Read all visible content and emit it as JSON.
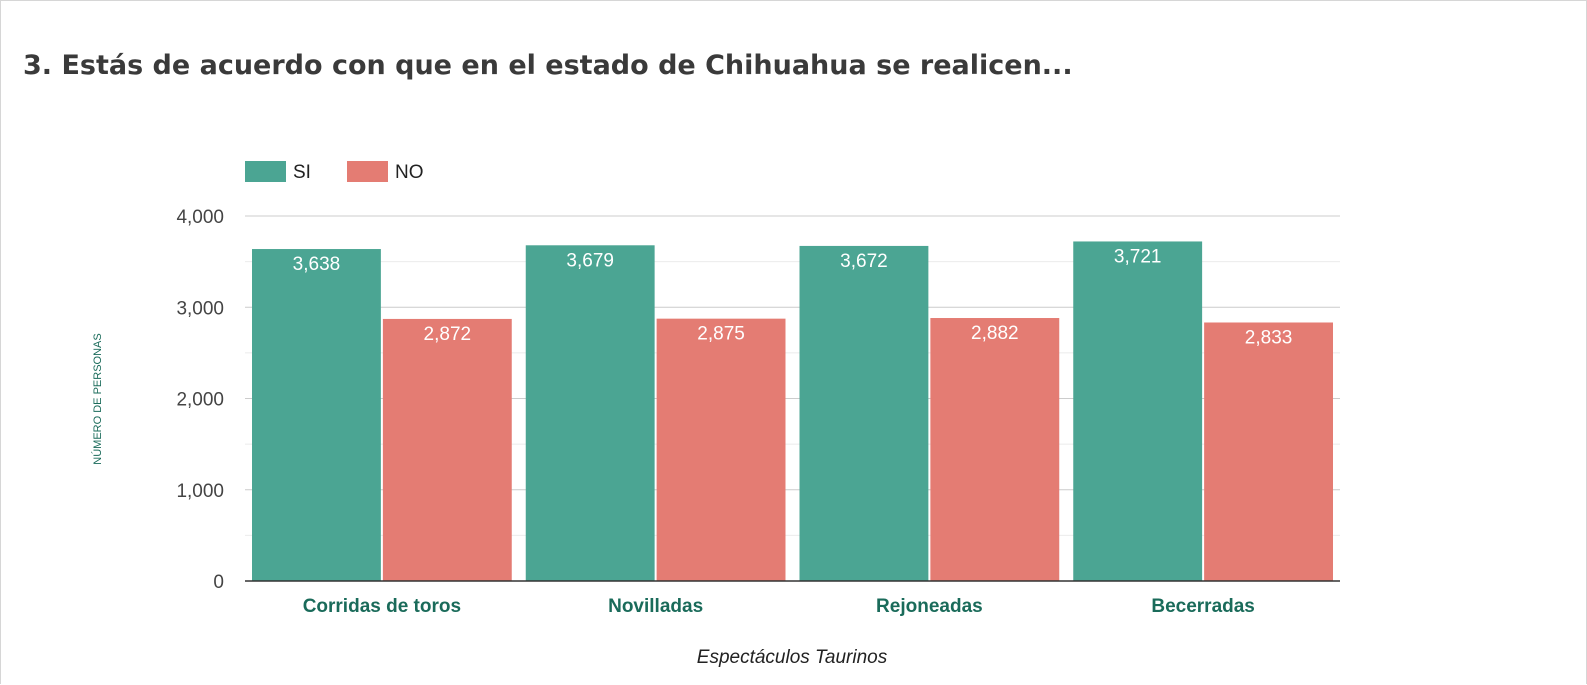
{
  "question": {
    "title": "3. Estás de acuerdo con que en el estado de Chihuahua se realicen..."
  },
  "chart_data": {
    "type": "bar",
    "title": "",
    "xlabel": "Espectáculos Taurinos",
    "ylabel": "NÚMERO DE PERSONAS",
    "categories": [
      "Corridas de toros",
      "Novilladas",
      "Rejoneadas",
      "Becerradas"
    ],
    "series": [
      {
        "name": "SI",
        "color": "#4ba593",
        "values": [
          3638,
          3679,
          3672,
          3721
        ]
      },
      {
        "name": "NO",
        "color": "#e47c73",
        "values": [
          2872,
          2875,
          2882,
          2833
        ]
      }
    ],
    "data_labels": [
      [
        "3,638",
        "3,679",
        "3,672",
        "3,721"
      ],
      [
        "2,872",
        "2,875",
        "2,882",
        "2,833"
      ]
    ],
    "ylim": [
      0,
      4000
    ],
    "yticks": [
      0,
      1000,
      2000,
      3000,
      4000
    ],
    "ytick_labels": [
      "0",
      "1,000",
      "2,000",
      "3,000",
      "4,000"
    ],
    "grid": true,
    "legend_position": "top-left",
    "colors": {
      "category_label": "#1a6b5a",
      "ylabel": "#1a6b5a",
      "tick_label": "#444444",
      "gridline": "#cccccc",
      "minor_gridline": "#ebebeb",
      "axis": "#333333"
    }
  }
}
